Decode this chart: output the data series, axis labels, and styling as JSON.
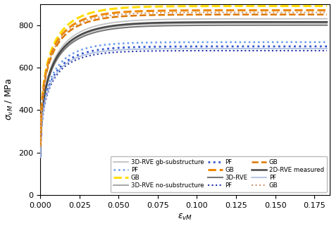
{
  "xlabel": "$\\epsilon_{vM}$",
  "ylabel": "$\\sigma_{vM}$ / MPa",
  "xlim": [
    0.0,
    0.185
  ],
  "ylim": [
    0,
    900
  ],
  "yticks": [
    0,
    200,
    400,
    600,
    800
  ],
  "xticks": [
    0.0,
    0.025,
    0.05,
    0.075,
    0.1,
    0.125,
    0.15,
    0.175
  ],
  "curves": [
    {
      "color": "#c0c0c0",
      "lw": 1.3,
      "ls": "solid",
      "A": 830,
      "B": 0.018,
      "n": 0.28,
      "label": "3D-RVE gb-substructure",
      "leg_col": 0
    },
    {
      "color": "#a0a0a0",
      "lw": 1.3,
      "ls": "solid",
      "A": 810,
      "B": 0.018,
      "n": 0.28,
      "label": "3D-RVE no-substructure",
      "leg_col": 0
    },
    {
      "color": "#787878",
      "lw": 1.5,
      "ls": "solid",
      "A": 800,
      "B": 0.018,
      "n": 0.28,
      "label": "3D-RVE",
      "leg_col": 0
    },
    {
      "color": "#484848",
      "lw": 1.8,
      "ls": "solid",
      "A": 815,
      "B": 0.018,
      "n": 0.28,
      "label": "2D-RVE measured",
      "leg_col": 0
    },
    {
      "color": "#6699ee",
      "lw": 1.8,
      "ls": "dotted",
      "A": 720,
      "B": 0.015,
      "n": 0.27,
      "label": "PF",
      "leg_col": 1
    },
    {
      "color": "#3355cc",
      "lw": 2.0,
      "ls": "dotted",
      "A": 700,
      "B": 0.015,
      "n": 0.27,
      "label": "PF",
      "leg_col": 1
    },
    {
      "color": "#2233aa",
      "lw": 1.5,
      "ls": "dotted",
      "A": 680,
      "B": 0.015,
      "n": 0.27,
      "label": "PF",
      "leg_col": 1
    },
    {
      "color": "#aabbdd",
      "lw": 1.2,
      "ls": "solid",
      "A": 690,
      "B": 0.015,
      "n": 0.27,
      "label": "PF",
      "leg_col": 1
    },
    {
      "color": "#ffdd00",
      "lw": 2.2,
      "ls": "dashed",
      "A": 890,
      "B": 0.016,
      "n": 0.26,
      "label": "GB",
      "leg_col": 2
    },
    {
      "color": "#ee8800",
      "lw": 2.2,
      "ls": "dashed",
      "A": 870,
      "B": 0.016,
      "n": 0.26,
      "label": "GB",
      "leg_col": 2
    },
    {
      "color": "#dd7700",
      "lw": 1.8,
      "ls": "dashed",
      "A": 850,
      "B": 0.016,
      "n": 0.26,
      "label": "GB",
      "leg_col": 2
    },
    {
      "color": "#cc9977",
      "lw": 1.5,
      "ls": "dotted",
      "A": 860,
      "B": 0.016,
      "n": 0.26,
      "label": "GB",
      "leg_col": 2
    }
  ],
  "legend_rows": [
    {
      "rve_idx": 0,
      "pf_idx": 4,
      "gb_idx": 8
    },
    {
      "rve_idx": 1,
      "pf_idx": 5,
      "gb_idx": 9
    },
    {
      "rve_idx": 2,
      "pf_idx": 6,
      "gb_idx": 10
    },
    {
      "rve_idx": 3,
      "pf_idx": 7,
      "gb_idx": 11
    }
  ]
}
